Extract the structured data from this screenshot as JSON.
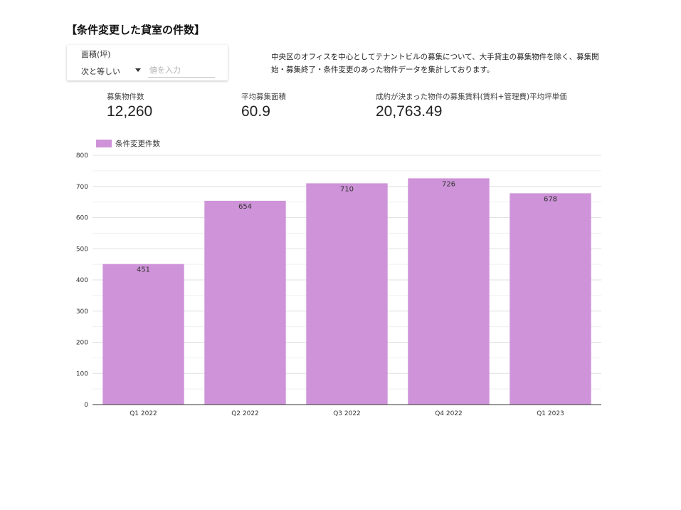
{
  "page": {
    "title": "【条件変更した貸室の件数】"
  },
  "filter": {
    "label": "面積(坪)",
    "operator": "次と等しい",
    "placeholder": "値を入力"
  },
  "description": "中央区のオフィスを中心としてテナントビルの募集について、大手貸主の募集物件を除く、募集開始・募集終了・条件変更のあった物件データを集計しております。",
  "metrics": [
    {
      "label": "募集物件数",
      "value": "12,260"
    },
    {
      "label": "平均募集面積",
      "value": "60.9"
    },
    {
      "label": "成約が決まった物件の募集賃料(賃料+管理費)平均坪単価",
      "value": "20,763.49"
    }
  ],
  "chart_data": {
    "type": "bar",
    "categories": [
      "Q1 2022",
      "Q2 2022",
      "Q3 2022",
      "Q4 2022",
      "Q1 2023"
    ],
    "series": [
      {
        "name": "条件変更件数",
        "values": [
          451,
          654,
          710,
          726,
          678
        ],
        "color": "#ce93d8"
      }
    ],
    "ylim": [
      0,
      800
    ],
    "yticks": [
      0,
      100,
      200,
      300,
      400,
      500,
      600,
      700,
      800
    ],
    "grid": true,
    "legend": "top-left",
    "data_labels": true
  }
}
